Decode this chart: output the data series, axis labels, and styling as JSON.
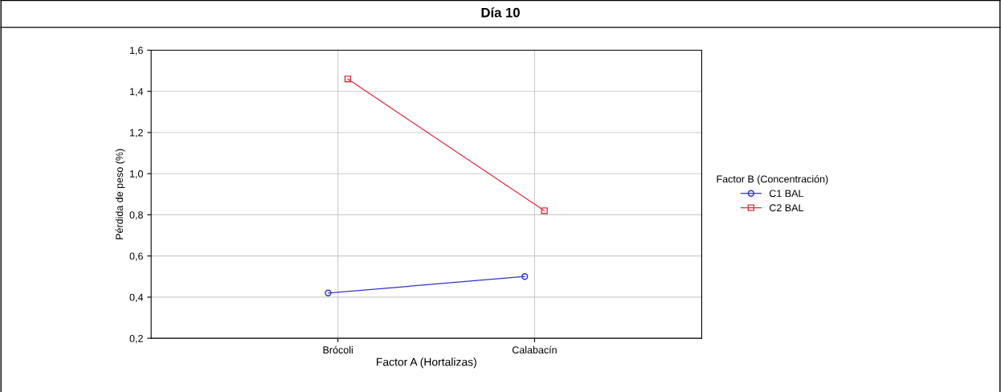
{
  "chart_data": {
    "type": "line",
    "title": "Día 10",
    "xlabel": "Factor A (Hortalizas)",
    "ylabel": "Pérdida de peso (%)",
    "legend_title": "Factor B (Concentración)",
    "categories": [
      "Brócoli",
      "Calabacín"
    ],
    "series": [
      {
        "name": "C1 BAL",
        "color": "#3030d0",
        "values": [
          0.42,
          0.5
        ],
        "marker": "circle"
      },
      {
        "name": "C2 BAL",
        "color": "#e03040",
        "values": [
          1.46,
          0.82
        ],
        "marker": "square"
      }
    ],
    "ylim": [
      0.2,
      1.6
    ],
    "yticks": [
      {
        "value": 0.2,
        "label": "0,2"
      },
      {
        "value": 0.4,
        "label": "0,4"
      },
      {
        "value": 0.6,
        "label": "0,6"
      },
      {
        "value": 0.8,
        "label": "0,8"
      },
      {
        "value": 1.0,
        "label": "1,0"
      },
      {
        "value": 1.2,
        "label": "1,2"
      },
      {
        "value": 1.4,
        "label": "1,4"
      },
      {
        "value": 1.6,
        "label": "1,6"
      }
    ],
    "grid": true,
    "legend": "right",
    "line_style": "solid"
  }
}
